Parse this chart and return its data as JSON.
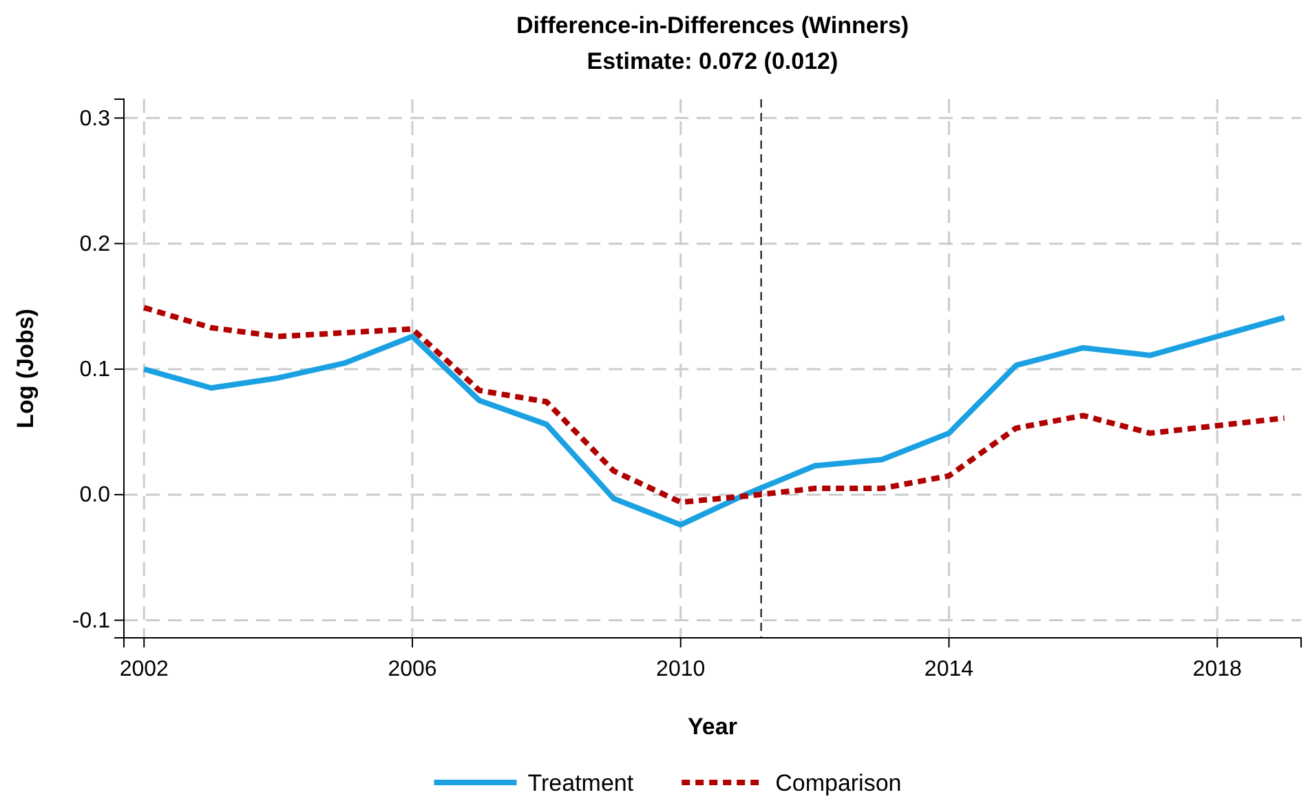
{
  "chart_data": {
    "type": "line",
    "title": "Difference-in-Differences (Winners)",
    "subtitle": "Estimate: 0.072 (0.012)",
    "xlabel": "Year",
    "ylabel": "Log (Jobs)",
    "x": [
      2002,
      2003,
      2004,
      2005,
      2006,
      2007,
      2008,
      2009,
      2010,
      2011,
      2012,
      2013,
      2014,
      2015,
      2016,
      2017,
      2018,
      2019
    ],
    "series": [
      {
        "name": "Treatment",
        "color": "#1ba1e2",
        "line_style": "solid",
        "values": [
          0.1,
          0.085,
          0.093,
          0.105,
          0.126,
          0.075,
          0.056,
          -0.003,
          -0.024,
          0.001,
          0.023,
          0.028,
          0.049,
          0.103,
          0.117,
          0.111,
          0.126,
          0.141
        ]
      },
      {
        "name": "Comparison",
        "color": "#b00000",
        "line_style": "dashed",
        "values": [
          0.149,
          0.133,
          0.126,
          0.129,
          0.132,
          0.083,
          0.074,
          0.019,
          -0.006,
          -0.001,
          0.005,
          0.005,
          0.015,
          0.053,
          0.063,
          0.049,
          0.055,
          0.061
        ]
      }
    ],
    "xlim": [
      2001.7,
      2019.25
    ],
    "xticks": [
      2002,
      2006,
      2010,
      2014,
      2018
    ],
    "ylim": [
      -0.114,
      0.315
    ],
    "yticks": [
      {
        "value": -0.1,
        "label": "-0.1"
      },
      {
        "value": 0,
        "label": "0.0"
      },
      {
        "value": 0.1,
        "label": "0.1"
      },
      {
        "value": 0.2,
        "label": "0.2"
      },
      {
        "value": 0.3,
        "label": "0.3"
      }
    ],
    "ref_lines": [
      {
        "axis": "x",
        "value": 2011.2,
        "color": "#000000",
        "line_style": "dashed"
      }
    ],
    "grid": true,
    "legend": "bottom"
  }
}
